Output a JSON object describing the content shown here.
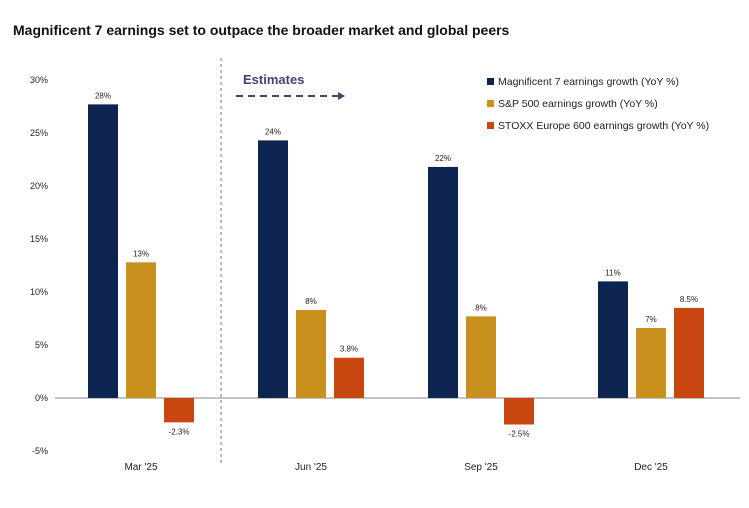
{
  "chart_data": {
    "type": "bar",
    "title": "Magnificent 7 earnings set to outpace the broader market and global peers",
    "categories": [
      "Mar '25",
      "Jun '25",
      "Sep '25",
      "Dec '25"
    ],
    "series": [
      {
        "name": "Magnificent 7 earnings growth (YoY %)",
        "color": "#0d2350",
        "values": [
          27.7,
          24.3,
          21.8,
          11.0
        ],
        "labels": [
          "28%",
          "24%",
          "22%",
          "11%"
        ]
      },
      {
        "name": "S&P 500 earnings growth (YoY %)",
        "color": "#c8901c",
        "values": [
          12.8,
          8.3,
          7.7,
          6.6
        ],
        "labels": [
          "13%",
          "8%",
          "8%",
          "7%"
        ]
      },
      {
        "name": "STOXX Europe 600 earnings growth (YoY %)",
        "color": "#c8460f",
        "values": [
          -2.3,
          3.8,
          -2.5,
          8.5
        ],
        "labels": [
          "-2.3%",
          "3.8%",
          "-2.5%",
          "8.5%"
        ]
      }
    ],
    "yticks": [
      "30%",
      "25%",
      "20%",
      "15%",
      "10%",
      "5%",
      "0%",
      "-5%"
    ],
    "ylim": [
      -5,
      30
    ],
    "grid": false,
    "legend": "top-right",
    "annotation": "Estimates",
    "annotation_color": "#4a3f73"
  }
}
